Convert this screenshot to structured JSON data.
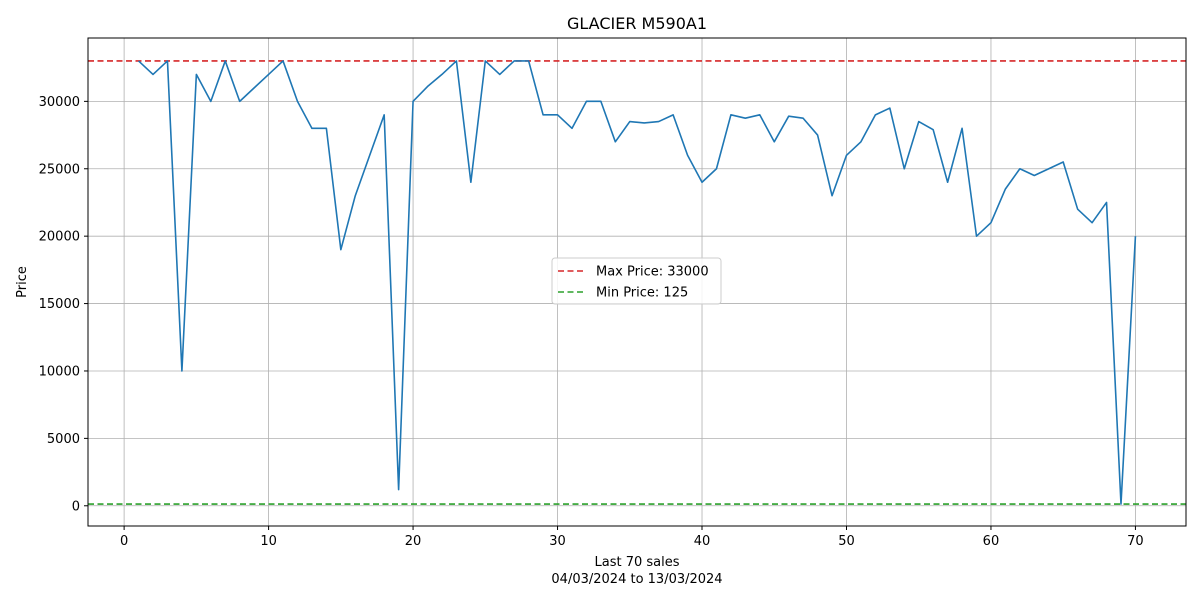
{
  "chart_data": {
    "type": "line",
    "title": "GLACIER M590A1",
    "xlabel": "Last 70 sales",
    "xlabel_sub": "04/03/2024 to 13/03/2024",
    "ylabel": "Price",
    "xlim": [
      -2.5,
      73.5
    ],
    "ylim": [
      -1500,
      34700
    ],
    "x_ticks": [
      0,
      10,
      20,
      30,
      40,
      50,
      60,
      70
    ],
    "y_ticks": [
      0,
      5000,
      10000,
      15000,
      20000,
      25000,
      30000
    ],
    "grid": true,
    "series": [
      {
        "color": "#1f77b4",
        "x": [
          1,
          2,
          3,
          4,
          5,
          6,
          7,
          8,
          9,
          10,
          11,
          12,
          13,
          14,
          15,
          16,
          17,
          18,
          19,
          20,
          21,
          22,
          23,
          24,
          25,
          26,
          27,
          28,
          29,
          30,
          31,
          32,
          33,
          34,
          35,
          36,
          37,
          38,
          39,
          40,
          41,
          42,
          43,
          44,
          45,
          46,
          47,
          48,
          49,
          50,
          51,
          52,
          53,
          54,
          55,
          56,
          57,
          58,
          59,
          60,
          61,
          62,
          63,
          64,
          65,
          66,
          67,
          68,
          69,
          70
        ],
        "values": [
          33000,
          32000,
          33000,
          10000,
          32000,
          30000,
          33000,
          30000,
          31000,
          32000,
          33000,
          30000,
          28000,
          28000,
          19000,
          23000,
          26000,
          29000,
          1200,
          30000,
          31100,
          32000,
          33000,
          24000,
          33000,
          32000,
          33000,
          33000,
          29000,
          29000,
          28000,
          30000,
          30000,
          27000,
          28500,
          28400,
          28500,
          29000,
          26000,
          24000,
          25000,
          29000,
          28750,
          29000,
          27000,
          28900,
          28750,
          27500,
          23000,
          26000,
          27000,
          29000,
          29500,
          25000,
          28500,
          27900,
          24000,
          28000,
          20000,
          21000,
          23500,
          25000,
          24500,
          25000,
          25500,
          22000,
          21000,
          22500,
          125,
          20000
        ]
      }
    ],
    "reference_lines": [
      {
        "label": "Max Price: 33000",
        "value": 33000,
        "color": "#d62728",
        "style": "dashed"
      },
      {
        "label": "Min Price: 125",
        "value": 125,
        "color": "#2ca02c",
        "style": "dashed"
      }
    ],
    "legend": {
      "placement": "center"
    }
  }
}
